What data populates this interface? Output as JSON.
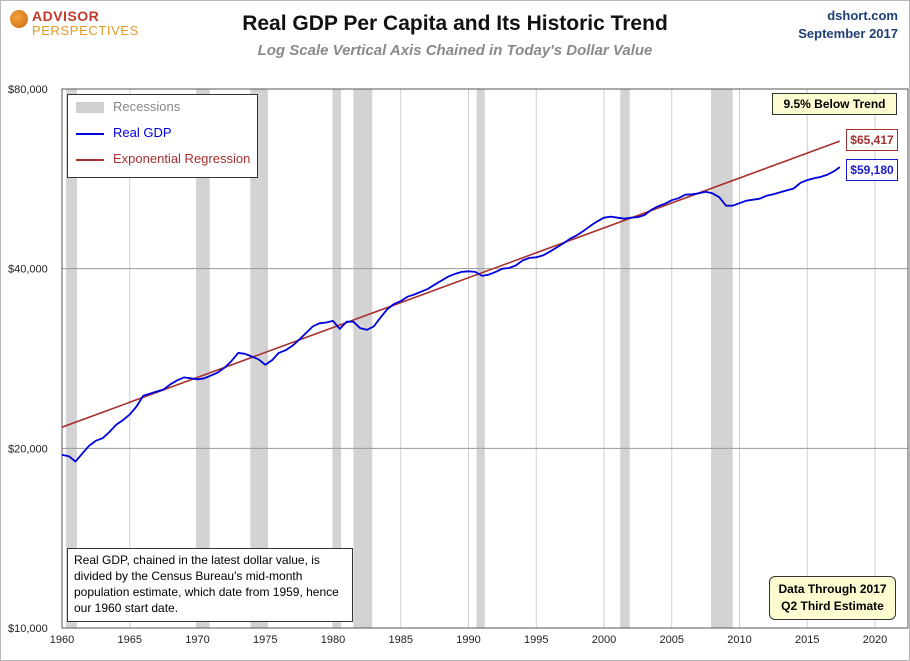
{
  "header": {
    "logo_line1": "ADVISOR",
    "logo_line2": "PERSPECTIVES",
    "source": "dshort.com",
    "date": "September 2017"
  },
  "chart_data": {
    "type": "line",
    "title": "Real GDP Per Capita and Its Historic Trend",
    "subtitle": "Log Scale Vertical Axis Chained in Today's Dollar Value",
    "y_scale": "log",
    "xlim": [
      1960,
      2022
    ],
    "ylim": [
      10000,
      80000
    ],
    "x_ticks": [
      1960,
      1965,
      1970,
      1975,
      1980,
      1985,
      1990,
      1995,
      2000,
      2005,
      2010,
      2015,
      2020
    ],
    "y_ticks": [
      {
        "value": 10000,
        "label": "$10,000"
      },
      {
        "value": 20000,
        "label": "$20,000"
      },
      {
        "value": 40000,
        "label": "$40,000"
      },
      {
        "value": 80000,
        "label": "$80,000"
      }
    ],
    "grid": "vertical",
    "legend_position": "top-left",
    "legend": [
      {
        "label": "Recessions",
        "color": "#d0d0d0",
        "kind": "band"
      },
      {
        "label": "Real GDP",
        "color": "#0000dd",
        "kind": "line"
      },
      {
        "label": "Exponential Regression",
        "color": "#a83030",
        "kind": "line"
      }
    ],
    "recessions": [
      [
        1960.3,
        1961.1
      ],
      [
        1969.9,
        1970.9
      ],
      [
        1973.9,
        1975.2
      ],
      [
        1980.0,
        1980.6
      ],
      [
        1981.5,
        1982.9
      ],
      [
        1990.6,
        1991.2
      ],
      [
        2001.2,
        2001.9
      ],
      [
        2007.9,
        2009.5
      ]
    ],
    "series": [
      {
        "name": "Real GDP",
        "color": "#0000dd",
        "points": [
          [
            1960.0,
            19500
          ],
          [
            1960.5,
            19400
          ],
          [
            1961.0,
            19000
          ],
          [
            1961.5,
            19600
          ],
          [
            1962.0,
            20200
          ],
          [
            1962.5,
            20600
          ],
          [
            1963.0,
            20800
          ],
          [
            1963.5,
            21300
          ],
          [
            1964.0,
            21900
          ],
          [
            1964.5,
            22300
          ],
          [
            1965.0,
            22800
          ],
          [
            1965.5,
            23500
          ],
          [
            1966.0,
            24500
          ],
          [
            1966.5,
            24700
          ],
          [
            1967.0,
            24900
          ],
          [
            1967.5,
            25100
          ],
          [
            1968.0,
            25600
          ],
          [
            1968.5,
            26000
          ],
          [
            1969.0,
            26300
          ],
          [
            1969.5,
            26200
          ],
          [
            1970.0,
            26100
          ],
          [
            1970.5,
            26200
          ],
          [
            1971.0,
            26500
          ],
          [
            1971.5,
            26800
          ],
          [
            1972.0,
            27300
          ],
          [
            1972.5,
            28000
          ],
          [
            1973.0,
            28900
          ],
          [
            1973.5,
            28800
          ],
          [
            1974.0,
            28500
          ],
          [
            1974.5,
            28200
          ],
          [
            1975.0,
            27600
          ],
          [
            1975.5,
            28100
          ],
          [
            1976.0,
            28900
          ],
          [
            1976.5,
            29200
          ],
          [
            1977.0,
            29700
          ],
          [
            1977.5,
            30400
          ],
          [
            1978.0,
            31200
          ],
          [
            1978.5,
            32000
          ],
          [
            1979.0,
            32400
          ],
          [
            1979.5,
            32500
          ],
          [
            1980.0,
            32700
          ],
          [
            1980.5,
            31700
          ],
          [
            1981.0,
            32600
          ],
          [
            1981.5,
            32600
          ],
          [
            1982.0,
            31800
          ],
          [
            1982.5,
            31600
          ],
          [
            1983.0,
            32000
          ],
          [
            1983.5,
            33100
          ],
          [
            1984.0,
            34200
          ],
          [
            1984.5,
            34900
          ],
          [
            1985.0,
            35300
          ],
          [
            1985.5,
            35900
          ],
          [
            1986.0,
            36200
          ],
          [
            1986.5,
            36600
          ],
          [
            1987.0,
            37000
          ],
          [
            1987.5,
            37600
          ],
          [
            1988.0,
            38200
          ],
          [
            1988.5,
            38800
          ],
          [
            1989.0,
            39200
          ],
          [
            1989.5,
            39500
          ],
          [
            1990.0,
            39600
          ],
          [
            1990.5,
            39500
          ],
          [
            1991.0,
            38900
          ],
          [
            1991.5,
            39100
          ],
          [
            1992.0,
            39500
          ],
          [
            1992.5,
            40000
          ],
          [
            1993.0,
            40100
          ],
          [
            1993.5,
            40500
          ],
          [
            1994.0,
            41300
          ],
          [
            1994.5,
            41700
          ],
          [
            1995.0,
            41800
          ],
          [
            1995.5,
            42100
          ],
          [
            1996.0,
            42700
          ],
          [
            1996.5,
            43400
          ],
          [
            1997.0,
            44100
          ],
          [
            1997.5,
            44900
          ],
          [
            1998.0,
            45500
          ],
          [
            1998.5,
            46300
          ],
          [
            1999.0,
            47200
          ],
          [
            1999.5,
            48000
          ],
          [
            2000.0,
            48700
          ],
          [
            2000.5,
            48900
          ],
          [
            2001.0,
            48700
          ],
          [
            2001.5,
            48500
          ],
          [
            2002.0,
            48700
          ],
          [
            2002.5,
            48800
          ],
          [
            2003.0,
            49200
          ],
          [
            2003.5,
            50200
          ],
          [
            2004.0,
            50900
          ],
          [
            2004.5,
            51400
          ],
          [
            2005.0,
            52100
          ],
          [
            2005.5,
            52500
          ],
          [
            2006.0,
            53200
          ],
          [
            2006.5,
            53300
          ],
          [
            2007.0,
            53500
          ],
          [
            2007.5,
            53800
          ],
          [
            2008.0,
            53500
          ],
          [
            2008.5,
            52700
          ],
          [
            2009.0,
            51000
          ],
          [
            2009.5,
            51000
          ],
          [
            2010.0,
            51500
          ],
          [
            2010.5,
            52000
          ],
          [
            2011.0,
            52200
          ],
          [
            2011.5,
            52400
          ],
          [
            2012.0,
            53000
          ],
          [
            2012.5,
            53300
          ],
          [
            2013.0,
            53700
          ],
          [
            2013.5,
            54100
          ],
          [
            2014.0,
            54500
          ],
          [
            2014.5,
            55700
          ],
          [
            2015.0,
            56300
          ],
          [
            2015.5,
            56700
          ],
          [
            2016.0,
            57000
          ],
          [
            2016.5,
            57500
          ],
          [
            2017.0,
            58300
          ],
          [
            2017.4,
            59180
          ]
        ]
      },
      {
        "name": "Exponential Regression",
        "color": "#a83030",
        "points": [
          [
            1960.0,
            21700
          ],
          [
            2017.4,
            65417
          ]
        ]
      }
    ],
    "end_labels": {
      "trend": "$65,417",
      "gdp": "$59,180"
    }
  },
  "annotations": {
    "trend_gap": "9.5% Below Trend",
    "note": "Real GDP, chained in the latest dollar value, is divided by the Census Bureau's mid-month population estimate, which date from 1959, hence our 1960 start date.",
    "data_through_line1": "Data Through 2017",
    "data_through_line2": "Q2 Third Estimate"
  }
}
